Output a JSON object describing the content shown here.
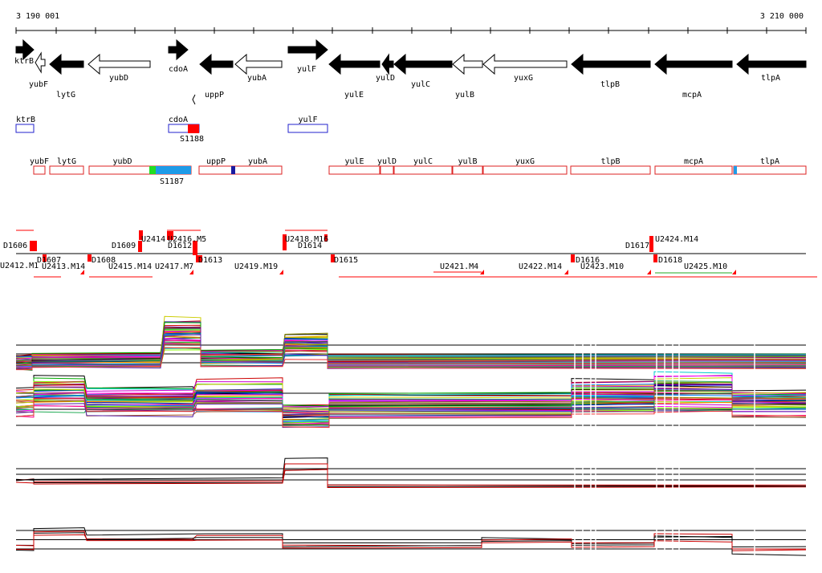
{
  "coords": {
    "left": "3 190 001",
    "right": "3 210 000"
  },
  "genes": [
    {
      "name": "ktrB",
      "strand": "+",
      "fill": "filled"
    },
    {
      "name": "yubF",
      "strand": "-",
      "fill": "open"
    },
    {
      "name": "lytG",
      "strand": "-",
      "fill": "filled"
    },
    {
      "name": "yubD",
      "strand": "-",
      "fill": "open"
    },
    {
      "name": "cdoA",
      "strand": "+",
      "fill": "filled"
    },
    {
      "name": "uppP",
      "strand": "-",
      "fill": "filled"
    },
    {
      "name": "yubA",
      "strand": "-",
      "fill": "open"
    },
    {
      "name": "yulF",
      "strand": "+",
      "fill": "filled"
    },
    {
      "name": "yulE",
      "strand": "-",
      "fill": "filled"
    },
    {
      "name": "yulD",
      "strand": "-",
      "fill": "filled"
    },
    {
      "name": "yulC",
      "strand": "-",
      "fill": "filled"
    },
    {
      "name": "yulB",
      "strand": "-",
      "fill": "open"
    },
    {
      "name": "yuxG",
      "strand": "-",
      "fill": "open"
    },
    {
      "name": "tlpB",
      "strand": "-",
      "fill": "filled"
    },
    {
      "name": "mcpA",
      "strand": "-",
      "fill": "filled"
    },
    {
      "name": "tlpA",
      "strand": "-",
      "fill": "filled"
    }
  ],
  "plus_boxes": [
    {
      "name": "ktrB"
    },
    {
      "name": "cdoA",
      "feature": "S1188"
    },
    {
      "name": "yulF"
    }
  ],
  "minus_boxes": [
    {
      "name": "yubF"
    },
    {
      "name": "lytG"
    },
    {
      "name": "yubD",
      "feature": "S1187"
    },
    {
      "name": "uppP"
    },
    {
      "name": "yubA"
    },
    {
      "name": "yulE"
    },
    {
      "name": "yulD"
    },
    {
      "name": "yulC"
    },
    {
      "name": "yulB"
    },
    {
      "name": "yuxG"
    },
    {
      "name": "tlpB"
    },
    {
      "name": "mcpA"
    },
    {
      "name": "tlpA"
    }
  ],
  "segment_labels": [
    "D1606",
    "D1607",
    "U2412.M1",
    "U2413.M14",
    "D1608",
    "D1609",
    "U2414",
    "U2415.M14",
    "U2416.M5",
    "D1612",
    "U2417.M7",
    "D1613",
    "U2419.M19",
    "U2418.M16",
    "D1614",
    "D1615",
    "U2421.M4",
    "U2422.M14",
    "D1616",
    "D1617",
    "U2424.M14",
    "U2423.M10",
    "D1618",
    "U2425.M10"
  ],
  "colors": {
    "gene": "#000000",
    "box_plus": "#2222cc",
    "box_minus": "#dd2222",
    "marker": "#ff0000",
    "s1187": "#1e9be8",
    "s1187_edge": "#22dd22",
    "uppP_mark": "#1a1aa0"
  },
  "profile_panels": [
    {
      "kind": "multi",
      "series_count": 40
    },
    {
      "kind": "multi",
      "series_count": 40
    },
    {
      "kind": "pair",
      "series_count": 4
    },
    {
      "kind": "pair",
      "series_count": 4
    }
  ]
}
